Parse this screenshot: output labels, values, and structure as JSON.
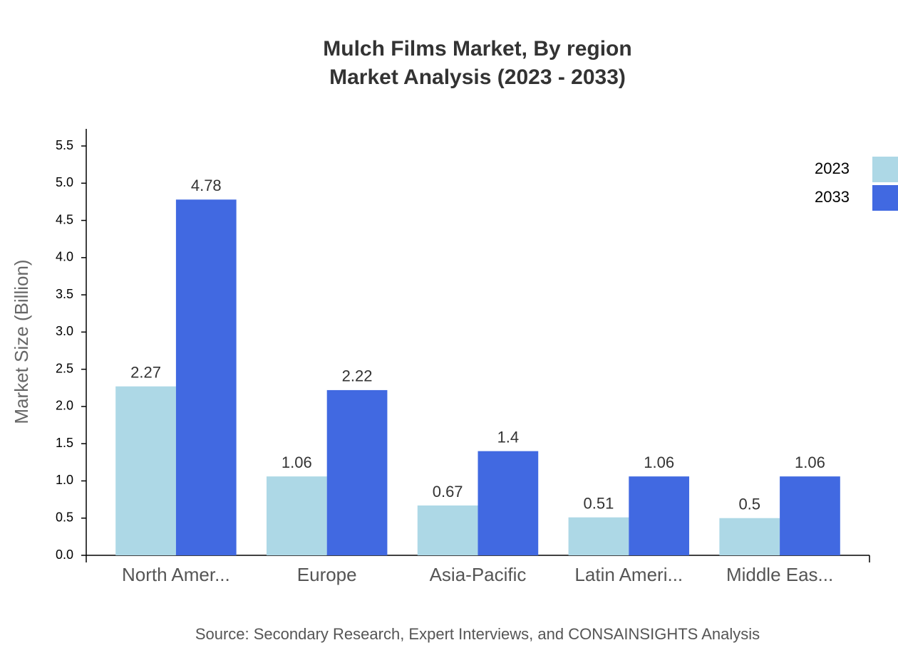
{
  "chart_data": {
    "type": "bar",
    "title": "Mulch Films Market, By region",
    "subtitle": "Market Analysis (2023 - 2033)",
    "y_label": "Market Size (Billion)",
    "source": "Source: Secondary Research, Expert Interviews, and CONSAINSIGHTS Analysis",
    "categories": [
      "North Amer...",
      "Europe",
      "Asia-Pacific",
      "Latin Ameri...",
      "Middle Eas..."
    ],
    "series": [
      {
        "name": "2023",
        "color": "#add8e6",
        "values": [
          2.27,
          1.06,
          0.67,
          0.51,
          0.5
        ]
      },
      {
        "name": "2033",
        "color": "#4169e1",
        "values": [
          4.78,
          2.22,
          1.4,
          1.06,
          1.06
        ]
      }
    ],
    "ylim": [
      0,
      5.73
    ],
    "yticks": [
      {
        "value": 0,
        "label": "0.0"
      },
      {
        "value": 0.5,
        "label": "0.5"
      },
      {
        "value": 1,
        "label": "1.0"
      },
      {
        "value": 1.5,
        "label": "1.5"
      },
      {
        "value": 2,
        "label": "2.0"
      },
      {
        "value": 2.5,
        "label": "2.5"
      },
      {
        "value": 3,
        "label": "3.0"
      },
      {
        "value": 3.5,
        "label": "3.5"
      },
      {
        "value": 4,
        "label": "4.0"
      },
      {
        "value": 4.5,
        "label": "4.5"
      },
      {
        "value": 5,
        "label": "5.0"
      },
      {
        "value": 5.5,
        "label": "5.5"
      }
    ],
    "grid": false,
    "legend": "top-right"
  }
}
